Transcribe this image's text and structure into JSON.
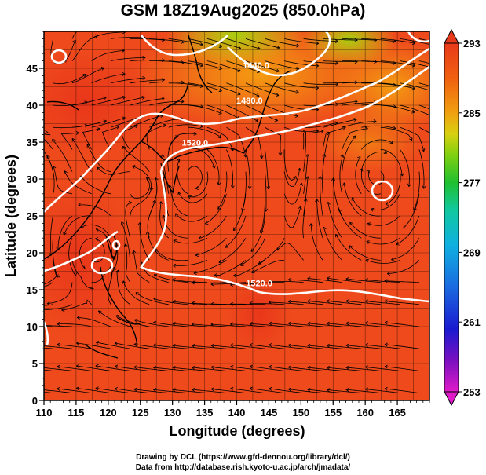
{
  "title": "GSM 18Z19Aug2025 (850.0hPa)",
  "map": {
    "xlabel": "Longitude (degrees)",
    "ylabel": "Latitude  (degrees)",
    "lon_range": [
      110,
      170
    ],
    "lat_range": [
      0,
      50
    ],
    "x_ticks": [
      "110",
      "115",
      "120",
      "125",
      "130",
      "135",
      "140",
      "145",
      "150",
      "155",
      "160",
      "165"
    ],
    "y_ticks": [
      "0",
      "5",
      "10",
      "15",
      "20",
      "25",
      "30",
      "35",
      "40",
      "45"
    ],
    "contour_labels": [
      {
        "text": "1520.0",
        "lon": 143.5,
        "lat": 15.5
      },
      {
        "text": "1520.0",
        "lon": 133.5,
        "lat": 34.5
      },
      {
        "text": "1480.0",
        "lon": 142.0,
        "lat": 40.2
      },
      {
        "text": "1440.0",
        "lon": 143.0,
        "lat": 45.0
      }
    ],
    "colors": {
      "field": "#ee4a1c",
      "warm": "#e8341a",
      "cool": "#f5a010",
      "cold": "#b8d010",
      "land": "#000000",
      "contour": "#ffffff"
    }
  },
  "colorbar": {
    "labels": [
      "293",
      "285",
      "277",
      "269",
      "261",
      "253"
    ],
    "range": [
      253,
      293
    ],
    "stops": [
      "#e01ac8",
      "#7a10c0",
      "#1a1ad0",
      "#1a6ae0",
      "#10b0e0",
      "#10c8a0",
      "#20c030",
      "#80d010",
      "#d8d010",
      "#f0a010",
      "#f06010",
      "#e83a1a"
    ]
  },
  "credits": {
    "line1": "Drawing by DCL (https://www.gfd-dennou.org/library/dcl/)",
    "line2": "Data from http://database.rish.kyoto-u.ac.jp/arch/jmadata/"
  }
}
